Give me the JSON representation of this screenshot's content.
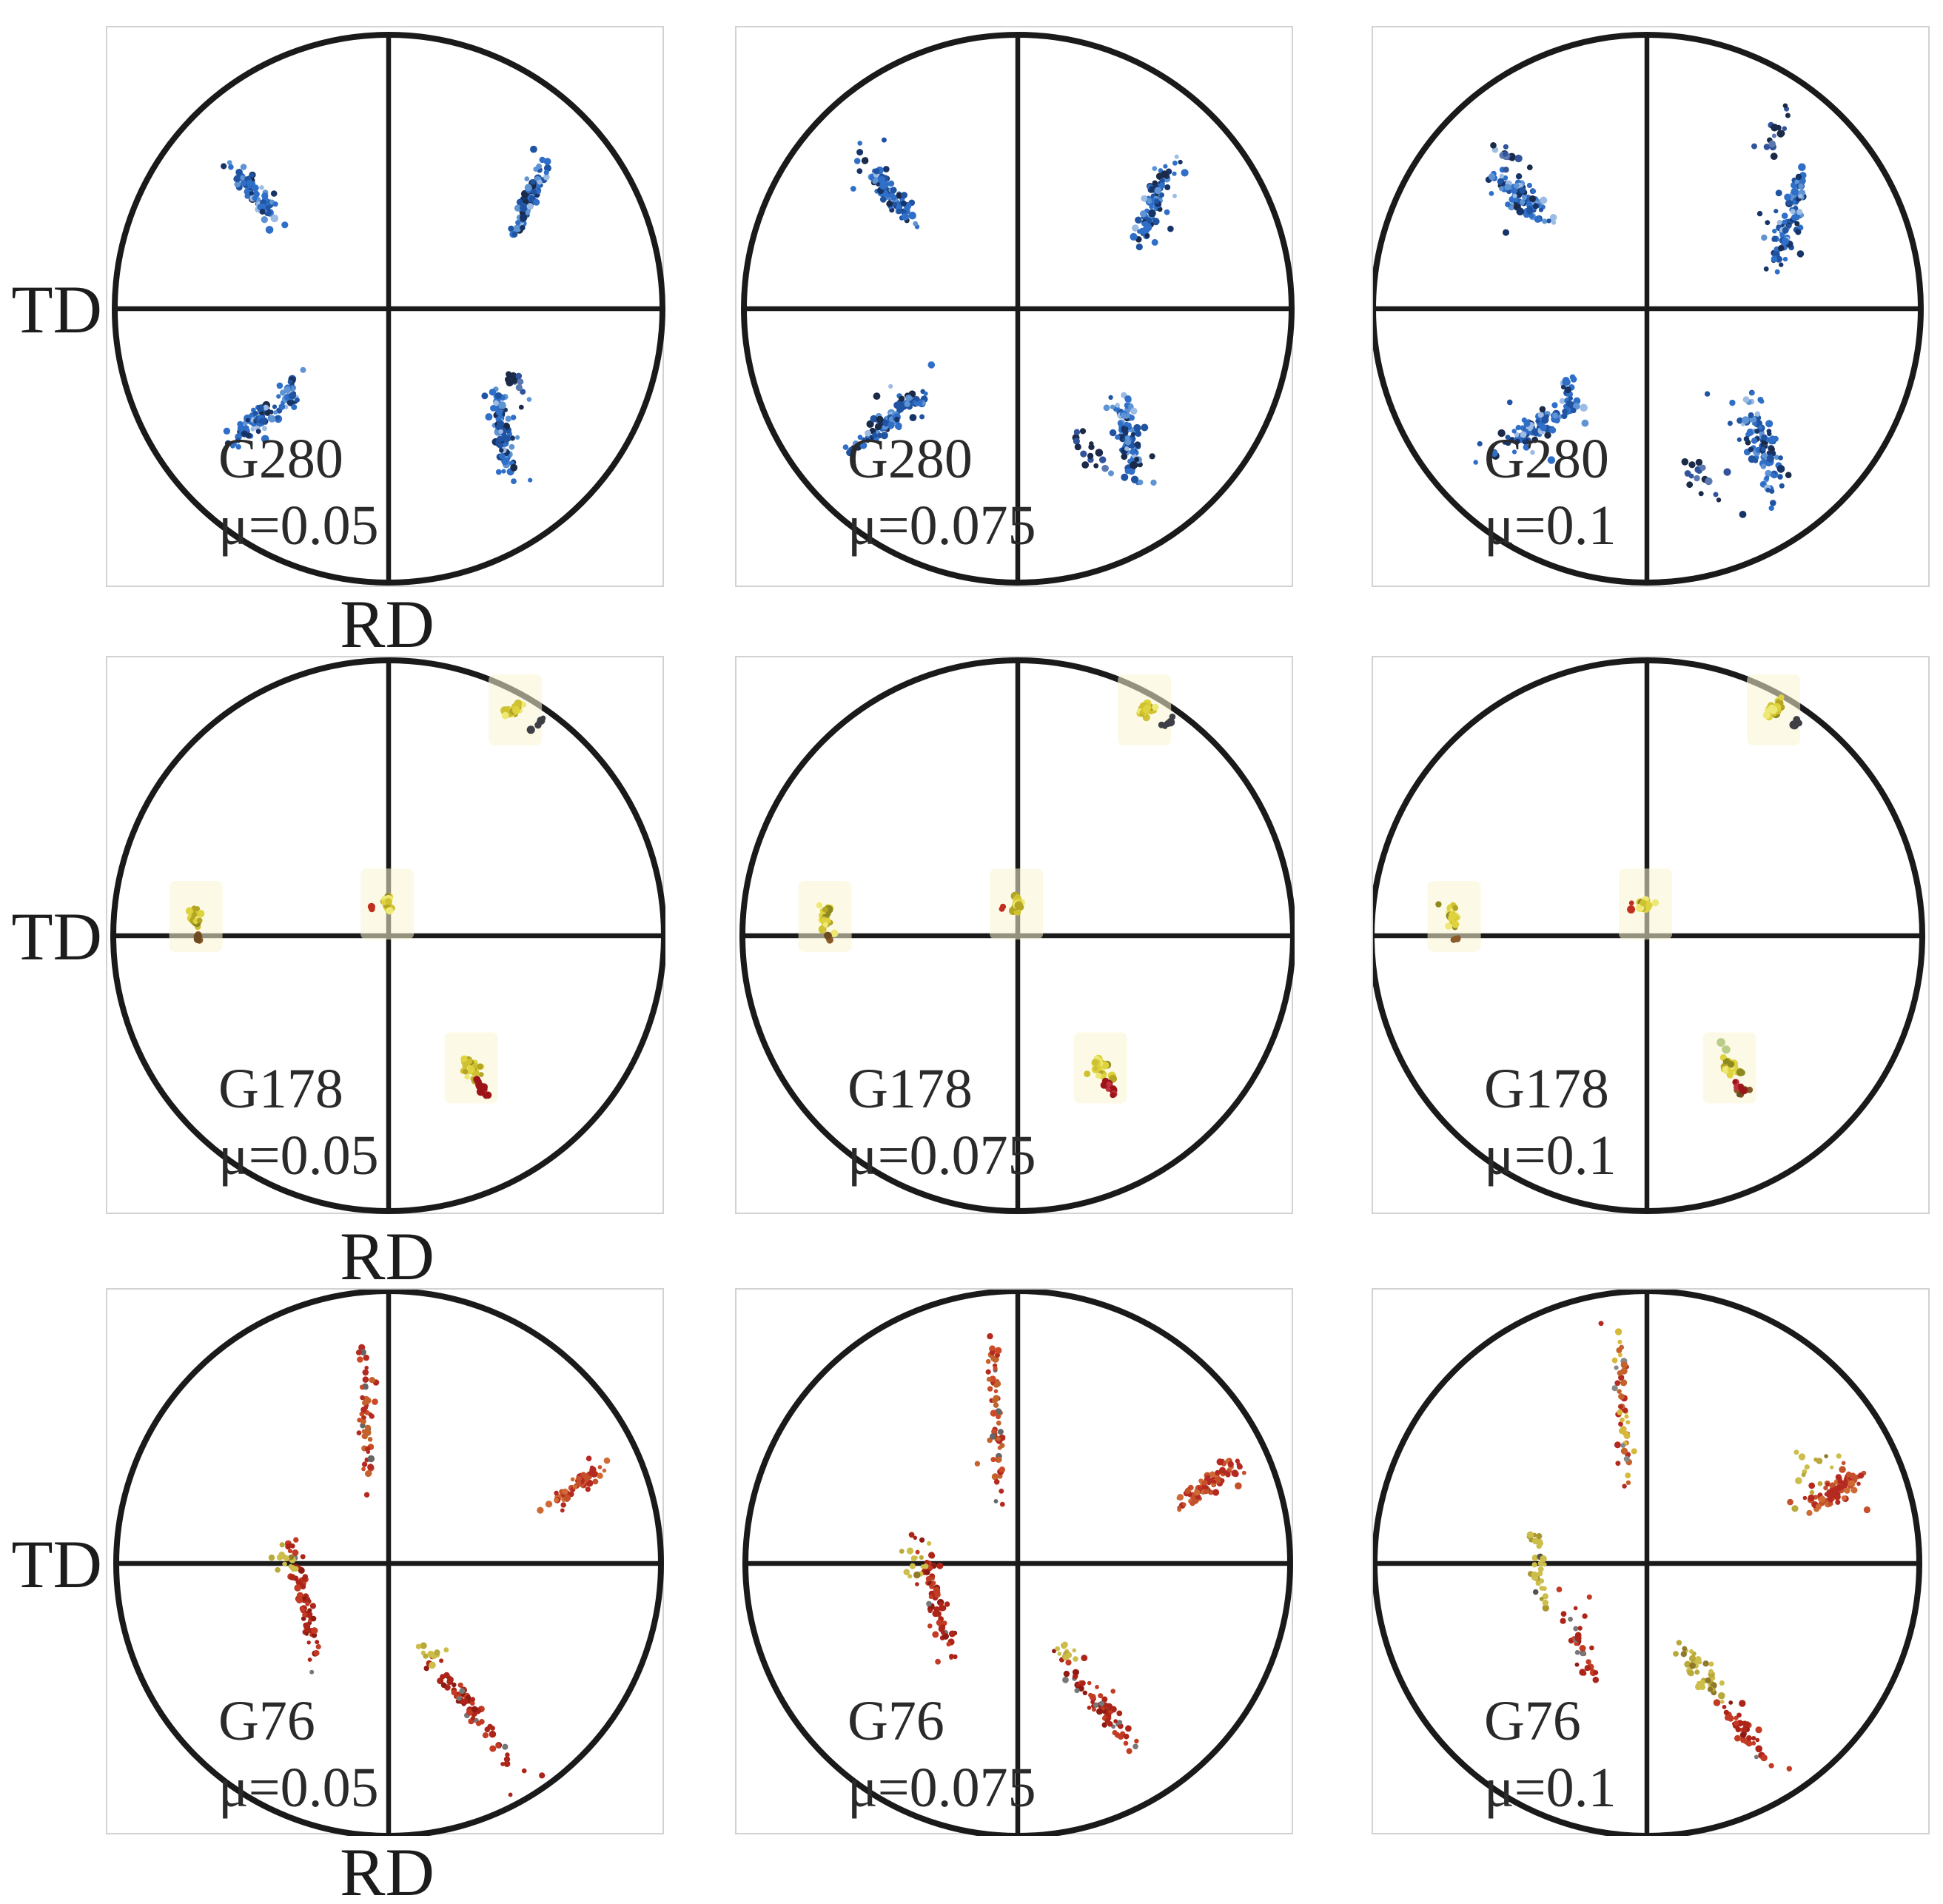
{
  "figure": {
    "td_label": "TD",
    "rd_label": "RD",
    "background": "#ffffff",
    "frame_color": "#d2d2d2",
    "axis_color": "#1a1a1a"
  },
  "chart_data": {
    "type": "scatter",
    "subtype": "pole-figures",
    "grid": {
      "rows": 3,
      "cols": 3
    },
    "xlabel": "RD",
    "ylabel": "TD",
    "samples": [
      "G280",
      "G178",
      "G76"
    ],
    "mu_values": [
      0.05,
      0.075,
      0.1
    ],
    "coords": "cluster centers normalized to pole-figure radius; x right, y down",
    "palettes": {
      "blue": [
        [
          "#2f6fc8",
          5
        ],
        [
          "#2054a2",
          3
        ],
        [
          "#173468",
          2
        ],
        [
          "#5e93d4",
          2
        ],
        [
          "#9dbce4",
          1
        ],
        [
          "#1b2a48",
          1
        ]
      ],
      "blueDark": [
        [
          "#1b2a48",
          3
        ],
        [
          "#31539c",
          2
        ],
        [
          "#5b79b0",
          1
        ]
      ],
      "yellow": [
        [
          "#ded33f",
          5
        ],
        [
          "#cfc230",
          3
        ],
        [
          "#b5a524",
          2
        ],
        [
          "#eee874",
          2
        ],
        [
          "#8f8a20",
          1
        ]
      ],
      "dark": [
        [
          "#3f3f46",
          1
        ]
      ],
      "brown": [
        [
          "#8a5a28",
          2
        ],
        [
          "#6e4a20",
          1
        ]
      ],
      "redSpeck": [
        [
          "#c03020",
          1
        ]
      ],
      "redDark": [
        [
          "#9c1418",
          3
        ],
        [
          "#c03040",
          1
        ]
      ],
      "green": [
        [
          "#6a9a30",
          1
        ]
      ],
      "orangeRedSparse": [
        [
          "#c4622c",
          3
        ],
        [
          "#b52a20",
          3
        ],
        [
          "#cc4a28",
          2
        ],
        [
          "#666666",
          1
        ]
      ],
      "redOrangeDense": [
        [
          "#b52a20",
          4
        ],
        [
          "#c4512c",
          3
        ],
        [
          "#d06a34",
          2
        ]
      ],
      "redTrail": [
        [
          "#ad2418",
          5
        ],
        [
          "#c33b24",
          3
        ],
        [
          "#8f1a12",
          2
        ],
        [
          "#777777",
          1
        ]
      ],
      "yellowOlive": [
        [
          "#cdbd4a",
          3
        ],
        [
          "#b9a93a",
          2
        ],
        [
          "#8f7a2a",
          1
        ]
      ],
      "yellowOliveDark": [
        [
          "#cdbd4a",
          3
        ],
        [
          "#a8982f",
          2
        ],
        [
          "#555550",
          1
        ]
      ],
      "yellowRedMix": [
        [
          "#d8b83a",
          3
        ],
        [
          "#c4622c",
          3
        ],
        [
          "#b52a20",
          3
        ],
        [
          "#888888",
          1
        ]
      ]
    },
    "panels": [
      {
        "sample": "G280",
        "mu_label": "μ=0.05",
        "mu": 0.05,
        "dot_r": 4.2,
        "clusters": [
          {
            "cx": -0.5,
            "cy": -0.43,
            "ang": 52,
            "len": 0.3,
            "wid": 0.09,
            "n": 85,
            "pal": "blue"
          },
          {
            "cx": 0.52,
            "cy": -0.41,
            "ang": -68,
            "len": 0.34,
            "wid": 0.07,
            "n": 85,
            "pal": "blue"
          },
          {
            "cx": -0.47,
            "cy": 0.4,
            "ang": -38,
            "len": 0.34,
            "wid": 0.1,
            "n": 95,
            "pal": "blue"
          },
          {
            "cx": -0.35,
            "cy": 0.29,
            "ang": 88,
            "len": 0.16,
            "wid": 0.05,
            "n": 16,
            "pal": "blue"
          },
          {
            "cx": 0.42,
            "cy": 0.46,
            "ang": 82,
            "len": 0.36,
            "wid": 0.1,
            "n": 95,
            "pal": "blue"
          },
          {
            "cx": 0.47,
            "cy": 0.27,
            "ang": 75,
            "len": 0.16,
            "wid": 0.07,
            "n": 12,
            "pal": "blueDark"
          }
        ]
      },
      {
        "sample": "G280",
        "mu_label": "μ=0.075",
        "mu": 0.075,
        "dot_r": 4.2,
        "clusters": [
          {
            "cx": -0.47,
            "cy": -0.43,
            "ang": 52,
            "len": 0.37,
            "wid": 0.11,
            "n": 95,
            "pal": "blue"
          },
          {
            "cx": 0.5,
            "cy": -0.4,
            "ang": -70,
            "len": 0.38,
            "wid": 0.09,
            "n": 95,
            "pal": "blue"
          },
          {
            "cx": -0.47,
            "cy": 0.41,
            "ang": -38,
            "len": 0.4,
            "wid": 0.11,
            "n": 105,
            "pal": "blue"
          },
          {
            "cx": 0.4,
            "cy": 0.47,
            "ang": 78,
            "len": 0.42,
            "wid": 0.12,
            "n": 100,
            "pal": "blue"
          },
          {
            "cx": 0.27,
            "cy": 0.53,
            "ang": 60,
            "len": 0.32,
            "wid": 0.16,
            "n": 16,
            "pal": "blueDark"
          }
        ]
      },
      {
        "sample": "G280",
        "mu_label": "μ=0.1",
        "mu": 0.1,
        "dot_r": 4.2,
        "clusters": [
          {
            "cx": -0.46,
            "cy": -0.41,
            "ang": 40,
            "len": 0.34,
            "wid": 0.15,
            "n": 90,
            "pal": "blue"
          },
          {
            "cx": -0.5,
            "cy": -0.56,
            "ang": 30,
            "len": 0.24,
            "wid": 0.1,
            "n": 14,
            "pal": "blueDark"
          },
          {
            "cx": 0.52,
            "cy": -0.33,
            "ang": -72,
            "len": 0.46,
            "wid": 0.11,
            "n": 95,
            "pal": "blue"
          },
          {
            "cx": 0.46,
            "cy": -0.63,
            "ang": -60,
            "len": 0.24,
            "wid": 0.13,
            "n": 16,
            "pal": "blueDark"
          },
          {
            "cx": -0.42,
            "cy": 0.44,
            "ang": -28,
            "len": 0.46,
            "wid": 0.12,
            "n": 100,
            "pal": "blue"
          },
          {
            "cx": -0.28,
            "cy": 0.29,
            "ang": 85,
            "len": 0.2,
            "wid": 0.06,
            "n": 14,
            "pal": "blue"
          },
          {
            "cx": 0.42,
            "cy": 0.5,
            "ang": 75,
            "len": 0.48,
            "wid": 0.16,
            "n": 100,
            "pal": "blue"
          },
          {
            "cx": 0.22,
            "cy": 0.62,
            "ang": 45,
            "len": 0.3,
            "wid": 0.2,
            "n": 16,
            "pal": "blueDark"
          }
        ]
      },
      {
        "sample": "G178",
        "mu_label": "μ=0.05",
        "mu": 0.05,
        "dot_r": 4.6,
        "clusters": [
          {
            "cx": 0.46,
            "cy": -0.82,
            "ang": -40,
            "len": 0.1,
            "wid": 0.06,
            "n": 26,
            "pal": "yellow",
            "halo": true,
            "tight": true
          },
          {
            "cx": 0.54,
            "cy": -0.77,
            "ang": -40,
            "len": 0.1,
            "wid": 0.03,
            "n": 6,
            "pal": "dark",
            "tight": true
          },
          {
            "cx": -0.7,
            "cy": -0.07,
            "ang": 88,
            "len": 0.12,
            "wid": 0.055,
            "n": 26,
            "pal": "yellow",
            "halo": true,
            "tight": true
          },
          {
            "cx": -0.69,
            "cy": 0.01,
            "ang": 88,
            "len": 0.04,
            "wid": 0.03,
            "n": 5,
            "pal": "brown",
            "tight": true
          },
          {
            "cx": -0.005,
            "cy": -0.115,
            "ang": 85,
            "len": 0.09,
            "wid": 0.05,
            "n": 22,
            "pal": "yellow",
            "halo": true,
            "tight": true
          },
          {
            "cx": -0.06,
            "cy": -0.1,
            "ang": 0,
            "len": 0.02,
            "wid": 0.02,
            "n": 2,
            "pal": "redSpeck",
            "tight": true
          },
          {
            "cx": 0.3,
            "cy": 0.48,
            "ang": 58,
            "len": 0.13,
            "wid": 0.08,
            "n": 30,
            "pal": "yellow",
            "halo": true,
            "tight": true
          },
          {
            "cx": 0.34,
            "cy": 0.555,
            "ang": 55,
            "len": 0.11,
            "wid": 0.04,
            "n": 12,
            "pal": "redDark",
            "tight": true
          }
        ]
      },
      {
        "sample": "G178",
        "mu_label": "μ=0.075",
        "mu": 0.075,
        "dot_r": 4.6,
        "clusters": [
          {
            "cx": 0.46,
            "cy": -0.82,
            "ang": -40,
            "len": 0.1,
            "wid": 0.06,
            "n": 26,
            "pal": "yellow",
            "halo": true,
            "tight": true
          },
          {
            "cx": 0.54,
            "cy": -0.77,
            "ang": -40,
            "len": 0.1,
            "wid": 0.03,
            "n": 6,
            "pal": "dark",
            "tight": true
          },
          {
            "cx": -0.7,
            "cy": -0.07,
            "ang": 88,
            "len": 0.12,
            "wid": 0.055,
            "n": 26,
            "pal": "yellow",
            "halo": true,
            "tight": true
          },
          {
            "cx": -0.69,
            "cy": 0.01,
            "ang": 88,
            "len": 0.04,
            "wid": 0.03,
            "n": 5,
            "pal": "brown",
            "tight": true
          },
          {
            "cx": -0.005,
            "cy": -0.115,
            "ang": 85,
            "len": 0.09,
            "wid": 0.05,
            "n": 22,
            "pal": "yellow",
            "halo": true,
            "tight": true
          },
          {
            "cx": -0.06,
            "cy": -0.1,
            "ang": 0,
            "len": 0.02,
            "wid": 0.02,
            "n": 2,
            "pal": "redSpeck",
            "tight": true
          },
          {
            "cx": 0.3,
            "cy": 0.48,
            "ang": 58,
            "len": 0.13,
            "wid": 0.08,
            "n": 30,
            "pal": "yellow",
            "halo": true,
            "tight": true
          },
          {
            "cx": 0.34,
            "cy": 0.56,
            "ang": 55,
            "len": 0.12,
            "wid": 0.04,
            "n": 14,
            "pal": "redDark",
            "tight": true
          }
        ]
      },
      {
        "sample": "G178",
        "mu_label": "μ=0.1",
        "mu": 0.1,
        "dot_r": 4.6,
        "clusters": [
          {
            "cx": 0.46,
            "cy": -0.82,
            "ang": -40,
            "len": 0.1,
            "wid": 0.06,
            "n": 26,
            "pal": "yellow",
            "halo": true,
            "tight": true
          },
          {
            "cx": 0.54,
            "cy": -0.77,
            "ang": -40,
            "len": 0.1,
            "wid": 0.03,
            "n": 6,
            "pal": "dark",
            "tight": true
          },
          {
            "cx": -0.7,
            "cy": -0.07,
            "ang": 88,
            "len": 0.12,
            "wid": 0.055,
            "n": 26,
            "pal": "yellow",
            "halo": true,
            "tight": true
          },
          {
            "cx": -0.69,
            "cy": 0.01,
            "ang": 88,
            "len": 0.04,
            "wid": 0.03,
            "n": 5,
            "pal": "brown",
            "tight": true
          },
          {
            "cx": -0.005,
            "cy": -0.115,
            "ang": 85,
            "len": 0.09,
            "wid": 0.05,
            "n": 22,
            "pal": "yellow",
            "halo": true,
            "tight": true
          },
          {
            "cx": -0.06,
            "cy": -0.1,
            "ang": 0,
            "len": 0.02,
            "wid": 0.02,
            "n": 2,
            "pal": "redSpeck",
            "tight": true
          },
          {
            "cx": 0.28,
            "cy": 0.41,
            "ang": 0,
            "len": 0.03,
            "wid": 0.03,
            "n": 3,
            "pal": "green",
            "tight": true
          },
          {
            "cx": 0.3,
            "cy": 0.48,
            "ang": 58,
            "len": 0.13,
            "wid": 0.08,
            "n": 30,
            "pal": "yellow",
            "halo": true,
            "tight": true
          },
          {
            "cx": 0.35,
            "cy": 0.57,
            "ang": 55,
            "len": 0.12,
            "wid": 0.05,
            "n": 10,
            "pal": "brown",
            "tight": true
          },
          {
            "cx": 0.34,
            "cy": 0.555,
            "ang": 55,
            "len": 0.1,
            "wid": 0.04,
            "n": 8,
            "pal": "redDark",
            "tight": true
          }
        ]
      },
      {
        "sample": "G76",
        "mu_label": "μ=0.05",
        "mu": 0.05,
        "dot_r": 3.8,
        "clusters": [
          {
            "cx": -0.085,
            "cy": -0.55,
            "ang": 88,
            "len": 0.64,
            "wid": 0.05,
            "n": 55,
            "pal": "orangeRedSparse"
          },
          {
            "cx": 0.71,
            "cy": -0.3,
            "ang": -38,
            "len": 0.3,
            "wid": 0.08,
            "n": 70,
            "pal": "redOrangeDense"
          },
          {
            "cx": -0.31,
            "cy": 0.14,
            "ang": 78,
            "len": 0.58,
            "wid": 0.085,
            "n": 70,
            "pal": "redTrail"
          },
          {
            "cx": -0.38,
            "cy": -0.02,
            "ang": 60,
            "len": 0.14,
            "wid": 0.08,
            "n": 14,
            "pal": "yellowOlive"
          },
          {
            "cx": 0.3,
            "cy": 0.53,
            "ang": 52,
            "len": 0.58,
            "wid": 0.085,
            "n": 65,
            "pal": "redTrail"
          },
          {
            "cx": 0.15,
            "cy": 0.32,
            "ang": 40,
            "len": 0.14,
            "wid": 0.09,
            "n": 10,
            "pal": "yellowOlive"
          }
        ]
      },
      {
        "sample": "G76",
        "mu_label": "μ=0.075",
        "mu": 0.075,
        "dot_r": 3.8,
        "clusters": [
          {
            "cx": -0.08,
            "cy": -0.54,
            "ang": 88,
            "len": 0.66,
            "wid": 0.065,
            "n": 60,
            "pal": "orangeRedSparse"
          },
          {
            "cx": 0.7,
            "cy": -0.29,
            "ang": -35,
            "len": 0.32,
            "wid": 0.1,
            "n": 80,
            "pal": "redOrangeDense"
          },
          {
            "cx": -0.3,
            "cy": 0.13,
            "ang": 76,
            "len": 0.56,
            "wid": 0.1,
            "n": 65,
            "pal": "redTrail"
          },
          {
            "cx": -0.38,
            "cy": 0.0,
            "ang": 60,
            "len": 0.15,
            "wid": 0.09,
            "n": 14,
            "pal": "yellowOlive"
          },
          {
            "cx": 0.31,
            "cy": 0.53,
            "ang": 50,
            "len": 0.6,
            "wid": 0.1,
            "n": 70,
            "pal": "redTrail"
          },
          {
            "cx": 0.17,
            "cy": 0.33,
            "ang": 40,
            "len": 0.15,
            "wid": 0.1,
            "n": 12,
            "pal": "yellowOlive"
          }
        ]
      },
      {
        "sample": "G76",
        "mu_label": "μ=0.1",
        "mu": 0.1,
        "dot_r": 3.8,
        "clusters": [
          {
            "cx": -0.09,
            "cy": -0.56,
            "ang": 88,
            "len": 0.62,
            "wid": 0.07,
            "n": 55,
            "pal": "yellowRedMix"
          },
          {
            "cx": 0.7,
            "cy": -0.27,
            "ang": -32,
            "len": 0.3,
            "wid": 0.11,
            "n": 85,
            "pal": "redOrangeDense"
          },
          {
            "cx": 0.6,
            "cy": -0.33,
            "ang": -32,
            "len": 0.3,
            "wid": 0.18,
            "n": 14,
            "pal": "yellowOlive"
          },
          {
            "cx": -0.4,
            "cy": 0.02,
            "ang": 80,
            "len": 0.32,
            "wid": 0.1,
            "n": 32,
            "pal": "yellowOliveDark"
          },
          {
            "cx": -0.25,
            "cy": 0.3,
            "ang": 75,
            "len": 0.36,
            "wid": 0.08,
            "n": 34,
            "pal": "redTrail"
          },
          {
            "cx": 0.2,
            "cy": 0.4,
            "ang": 55,
            "len": 0.36,
            "wid": 0.13,
            "n": 42,
            "pal": "yellowOlive"
          },
          {
            "cx": 0.36,
            "cy": 0.62,
            "ang": 52,
            "len": 0.36,
            "wid": 0.08,
            "n": 40,
            "pal": "redTrail"
          }
        ]
      }
    ]
  }
}
